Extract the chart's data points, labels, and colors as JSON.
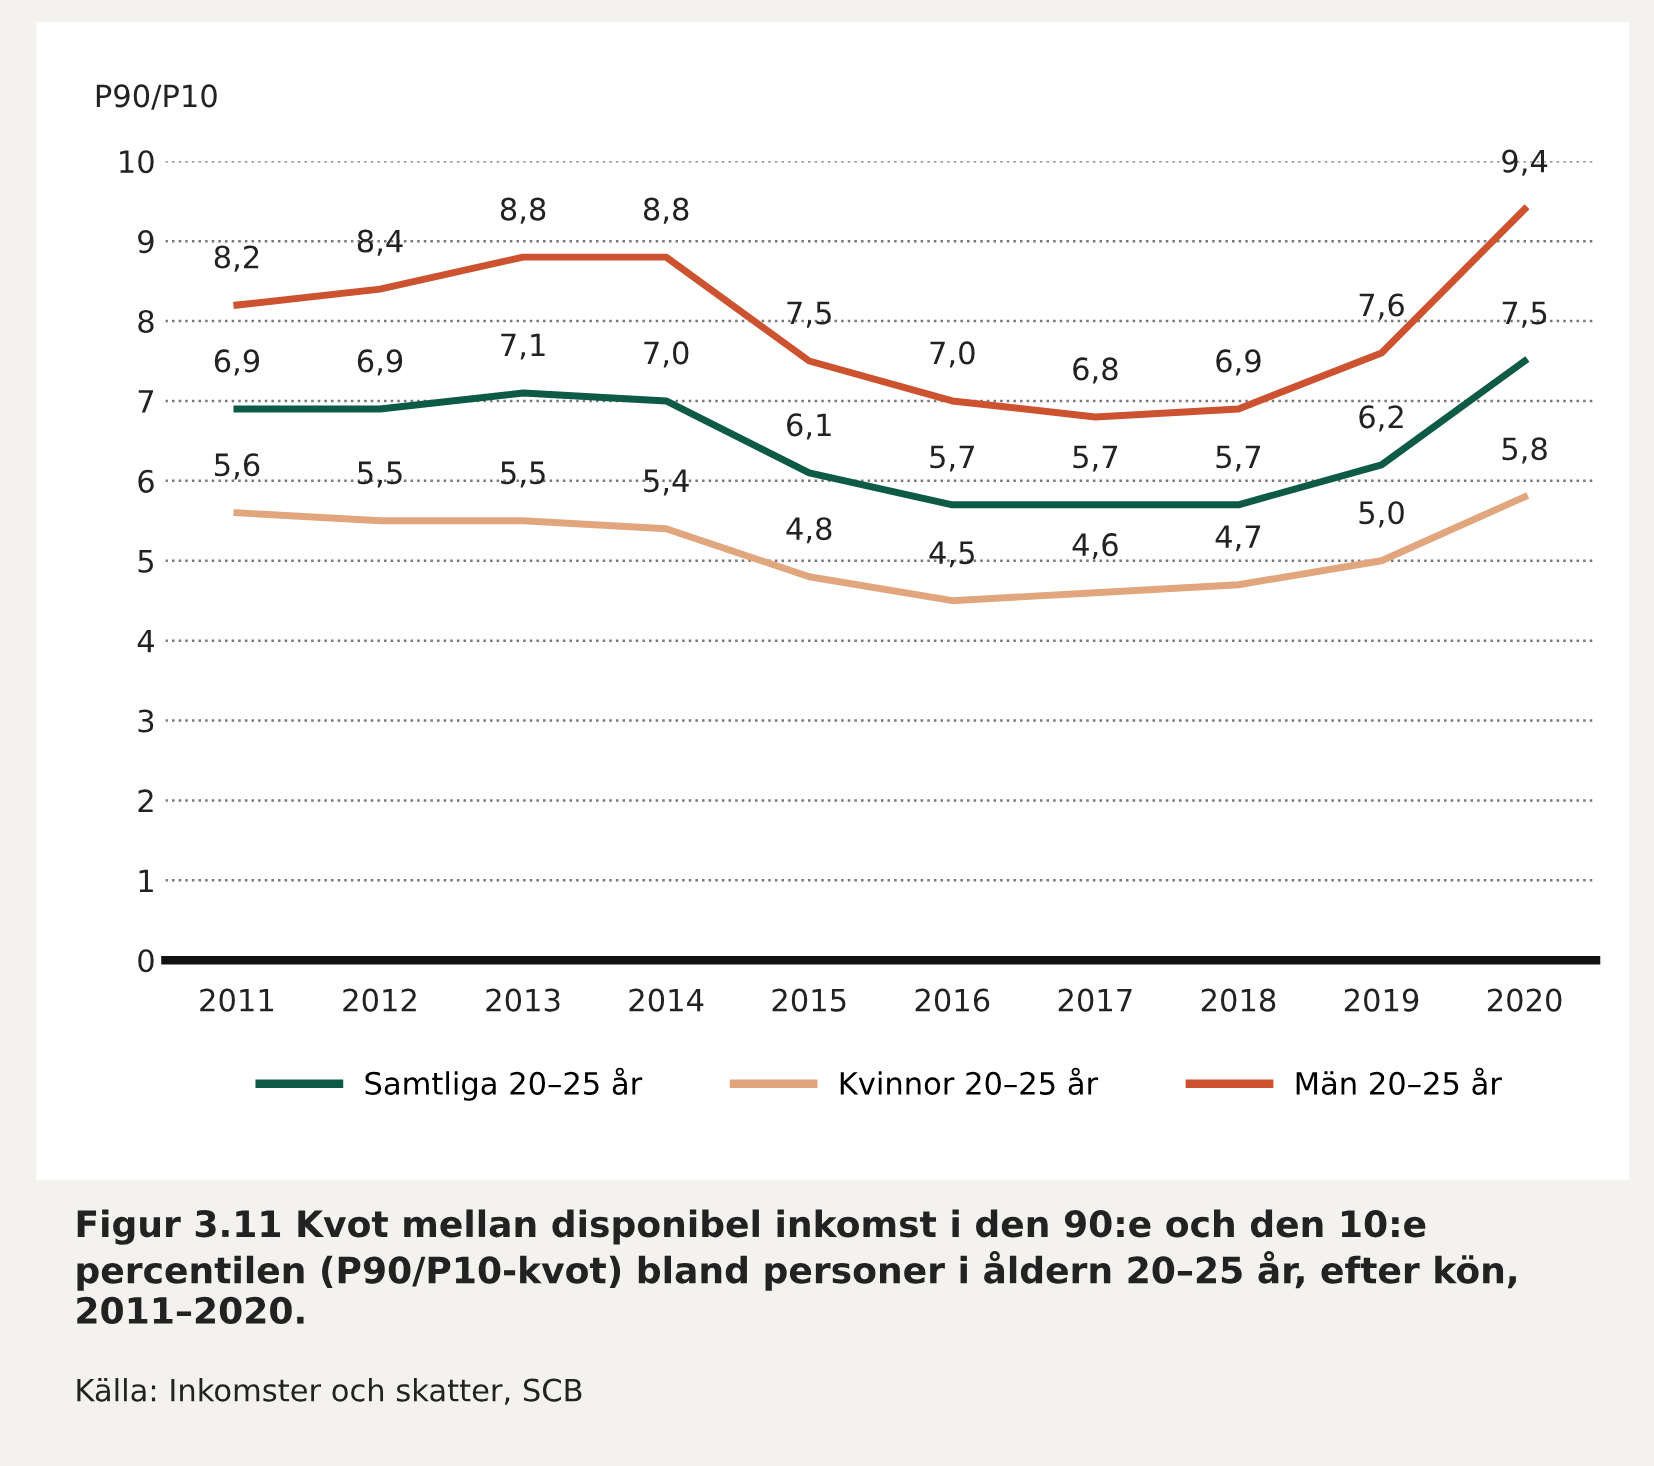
{
  "chart_data": {
    "type": "line",
    "title": "Figur 3.11 Kvot mellan disponibel inkomst i den 90:e och den 10:e percentilen (P90/P10-kvot) bland personer i åldern 20–25 år, efter kön, 2011–2020.",
    "ylabel": "P90/P10",
    "annotations": [
      "Källa: Inkomster och skatter, SCB"
    ],
    "categories": [
      "2011",
      "2012",
      "2013",
      "2014",
      "2015",
      "2016",
      "2017",
      "2018",
      "2019",
      "2020"
    ],
    "series": [
      {
        "name": "Samtliga 20–25 år",
        "color": "#0d5a46",
        "values": [
          6.9,
          6.9,
          7.1,
          7.0,
          6.1,
          5.7,
          5.7,
          5.7,
          6.2,
          7.5
        ],
        "value_labels": [
          "6,9",
          "6,9",
          "7,1",
          "7,0",
          "6,1",
          "5,7",
          "5,7",
          "5,7",
          "6,2",
          "7,5"
        ]
      },
      {
        "name": "Kvinnor 20–25 år",
        "color": "#e2a67e",
        "values": [
          5.6,
          5.5,
          5.5,
          5.4,
          4.8,
          4.5,
          4.6,
          4.7,
          5.0,
          5.8
        ],
        "value_labels": [
          "5,6",
          "5,5",
          "5,5",
          "5,4",
          "4,8",
          "4,5",
          "4,6",
          "4,7",
          "5,0",
          "5,8"
        ]
      },
      {
        "name": "Män 20–25 år",
        "color": "#cc5230",
        "values": [
          8.2,
          8.4,
          8.8,
          8.8,
          7.5,
          7.0,
          6.8,
          6.9,
          7.6,
          9.4
        ],
        "value_labels": [
          "8,2",
          "8,4",
          "8,8",
          "8,8",
          "7,5",
          "7,0",
          "6,8",
          "6,9",
          "7,6",
          "9,4"
        ]
      }
    ],
    "ylim": [
      0,
      10
    ],
    "yticks": [
      0,
      1,
      2,
      3,
      4,
      5,
      6,
      7,
      8,
      9,
      10
    ],
    "grid": "y",
    "legend": "bottom",
    "marker": "none",
    "line_style": "solid"
  }
}
